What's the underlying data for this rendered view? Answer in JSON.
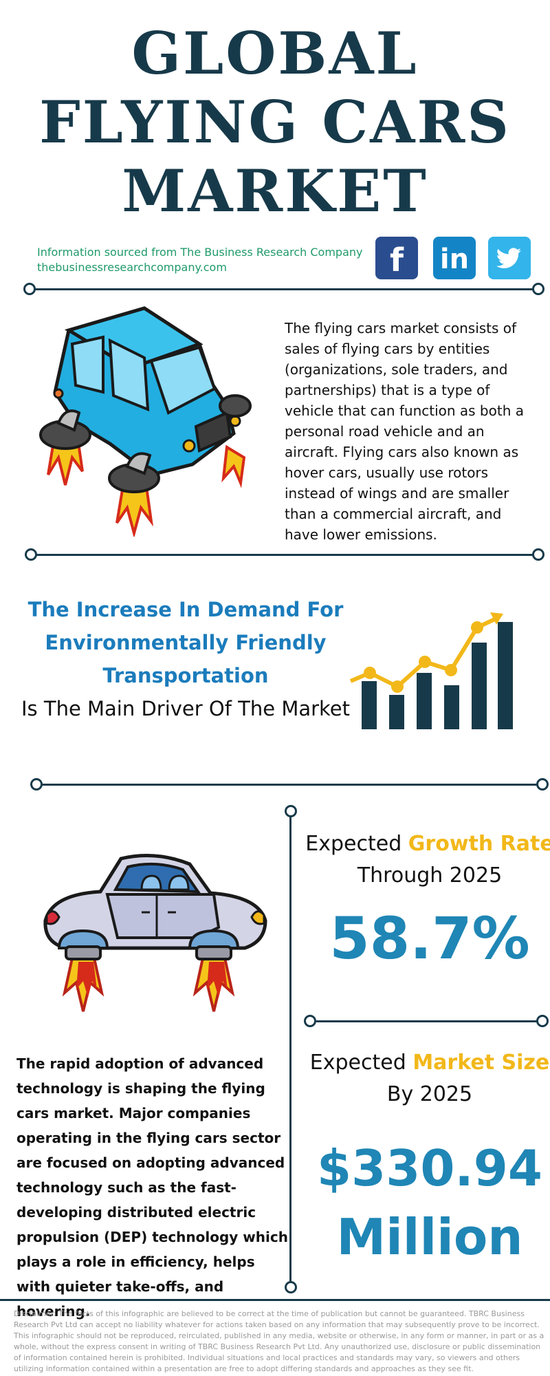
{
  "title": {
    "line1": "GLOBAL",
    "line2": "FLYING CARS",
    "line3": "MARKET"
  },
  "source": {
    "line1": "Information sourced from The Business Research Company",
    "line2": "thebusinessresearchcompany.com"
  },
  "social": {
    "facebook_letter": "f",
    "linkedin_text": "in",
    "icons": [
      "facebook-icon",
      "linkedin-icon",
      "twitter-icon"
    ]
  },
  "intro": {
    "text": "The flying cars market consists of sales of flying cars by entities (organizations, sole traders, and partnerships) that is a type of vehicle that can function as both a personal road vehicle and an aircraft. Flying cars also known as hover cars, usually use rotors instead of wings and are smaller than a commercial aircraft, and have lower emissions."
  },
  "driver": {
    "highlight": "The Increase In Demand For Environmentally Friendly Transportation",
    "rest": "Is The Main Driver Of The Market"
  },
  "growth": {
    "prefix": "Expected",
    "highlight": "Growth Rate",
    "line2": "Through 2025",
    "value": "58.7%"
  },
  "market_size": {
    "prefix": "Expected",
    "highlight": "Market Size",
    "line2": "By 2025",
    "value_line1": "$330.94",
    "value_line2": "Million"
  },
  "technology": {
    "text": "The rapid adoption of advanced technology is shaping the flying cars market. Major companies operating in the flying cars sector are focused on adopting advanced technology such as the fast-developing distributed electric propulsion (DEP) technology which plays a role in efficiency, helps with quieter take-offs, and hovering."
  },
  "disclaimer": {
    "text": "Disclaimer: The facts of this infographic are believed to be correct at the time of publication but cannot be guaranteed. TBRC Business Research Pvt Ltd can accept no liability whatever for actions taken based on any information that may subsequently prove to be incorrect. This infographic should not be reproduced, reirculated, published in any media, website or otherwise, in any form or manner, in part or as a whole, without the express consent in writing of TBRC Business Research Pvt Ltd. Any unauthorized use, disclosure or public dissemination of information contained herein is prohibited. Individual situations and local practices and standards may vary, so viewers and others utilizing information contained within a presentation are free to adopt differing standards and approaches as they see fit."
  },
  "colors": {
    "navy": "#173a4a",
    "accent_blue": "#1b7cbc",
    "gold": "#f2b81a",
    "green_source": "#1f9a6a"
  }
}
